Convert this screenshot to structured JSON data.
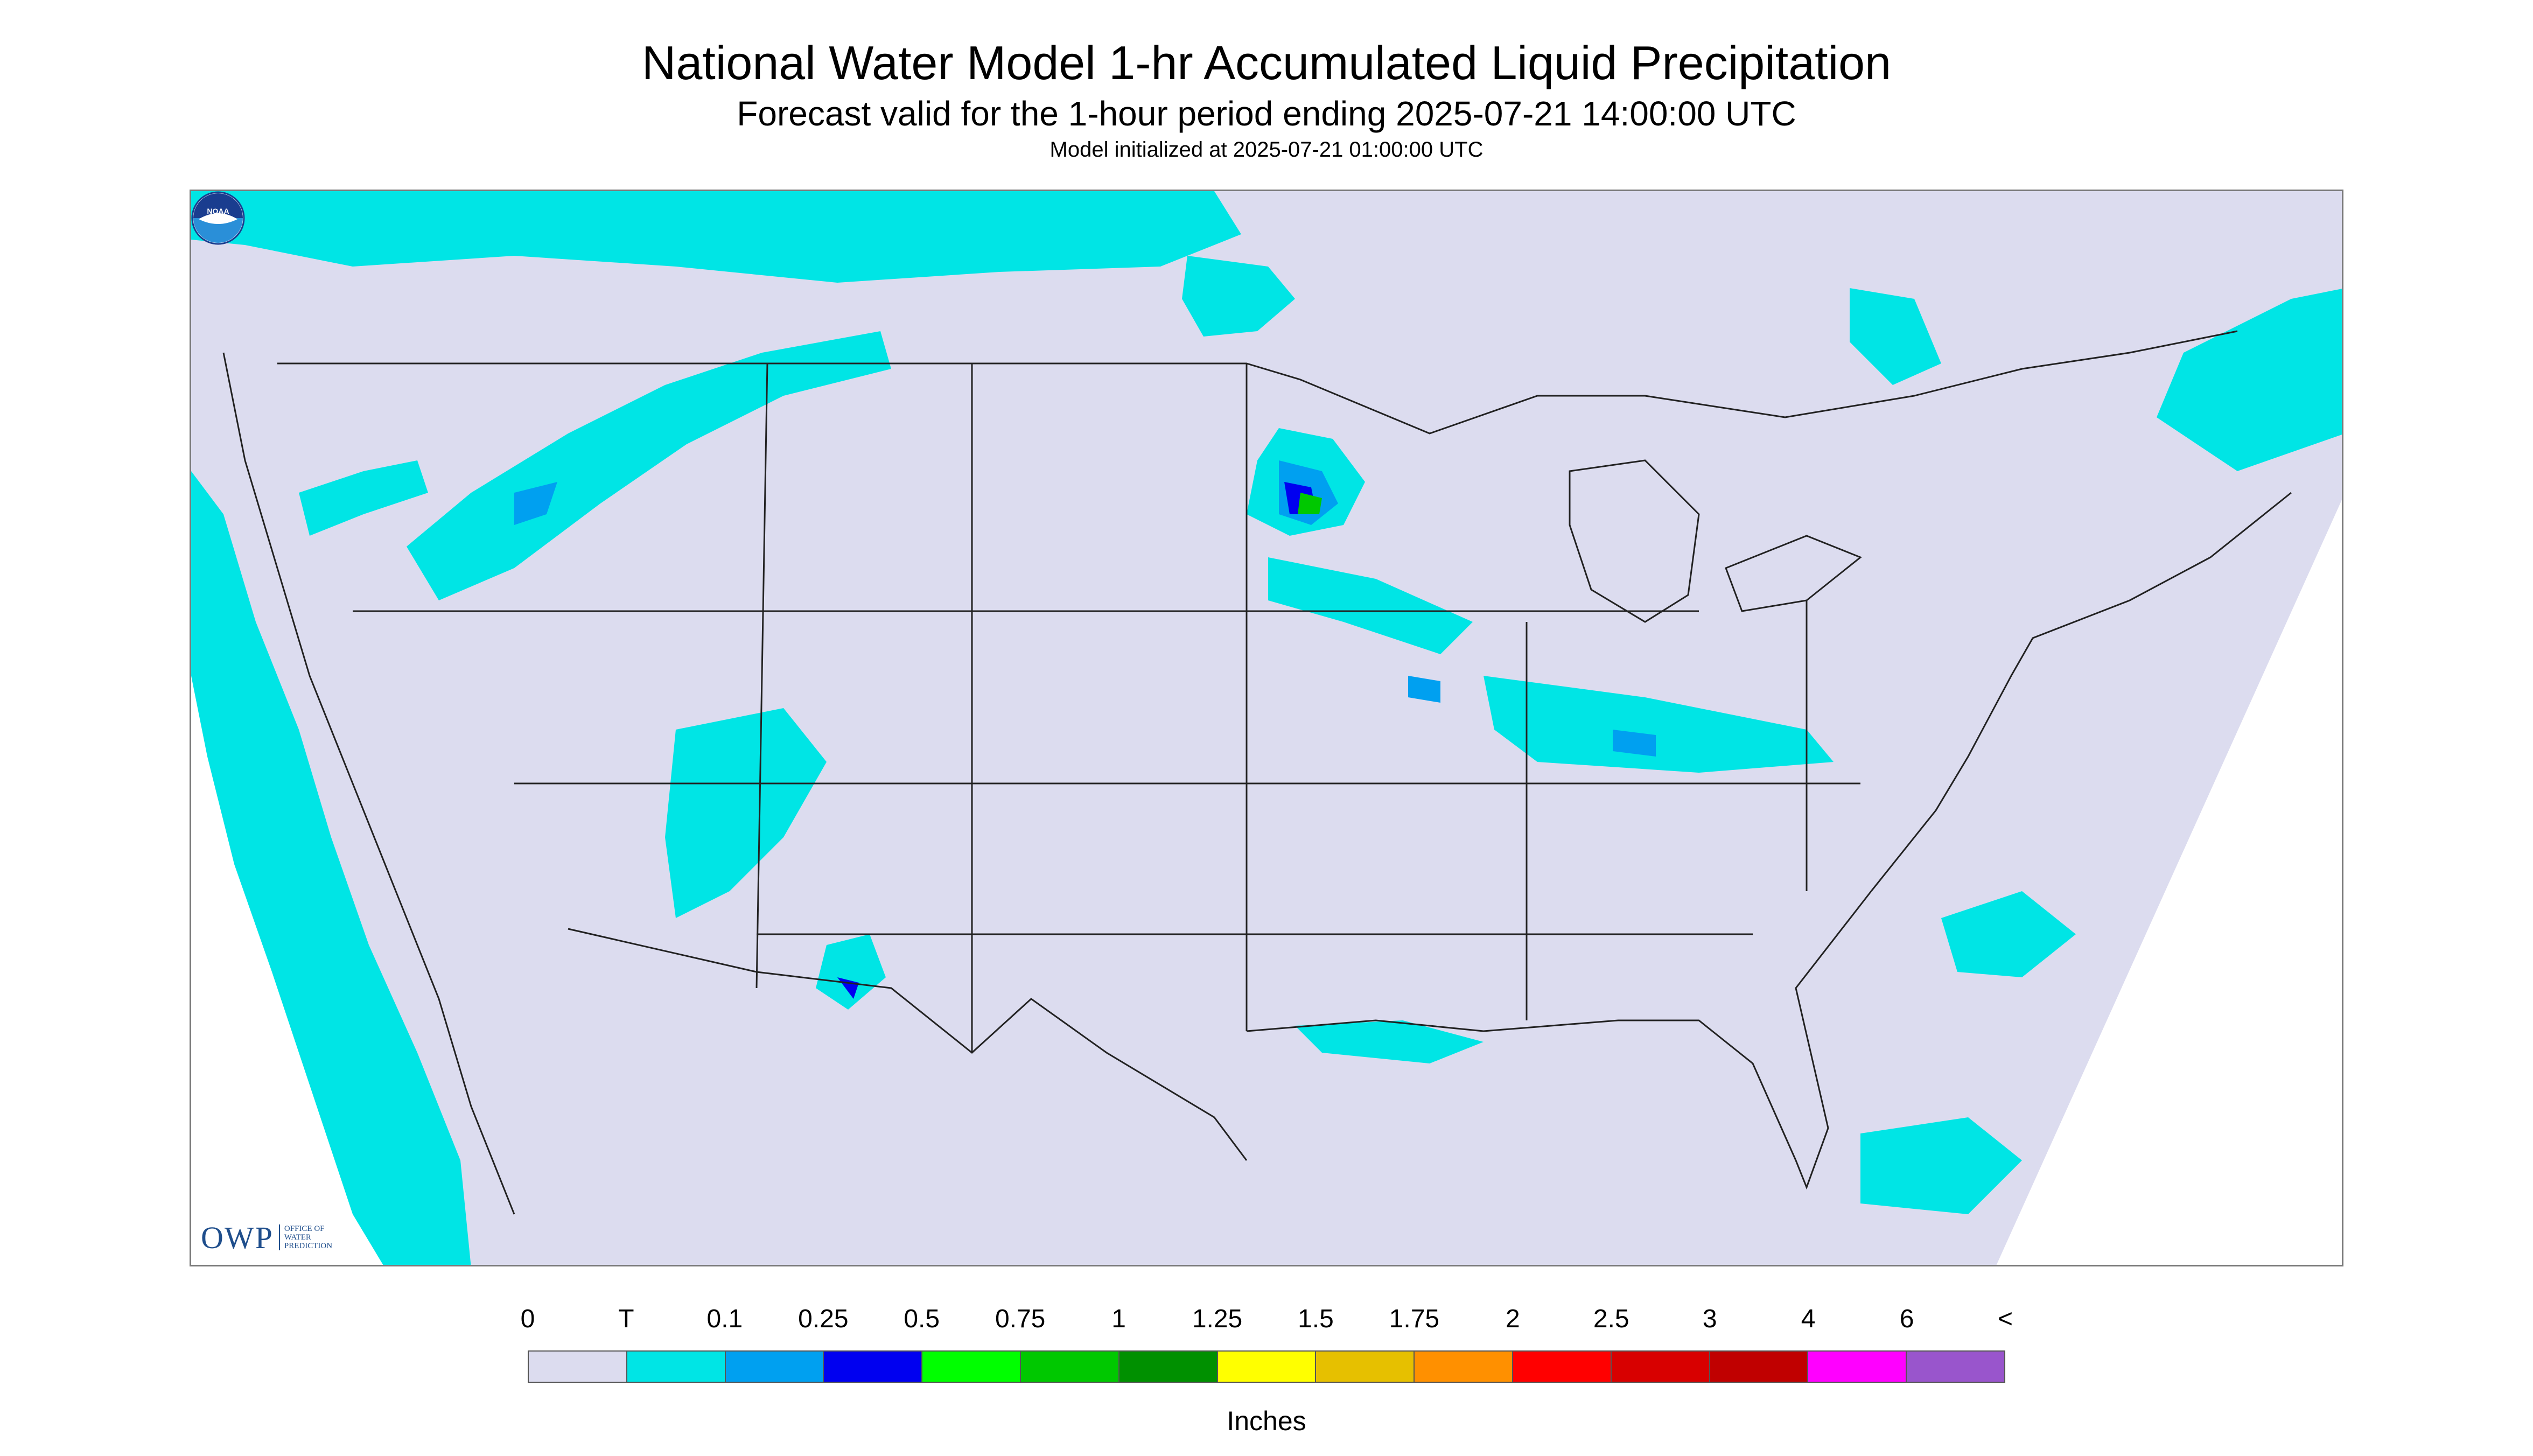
{
  "header": {
    "title": "National Water Model 1-hr Accumulated Liquid Precipitation",
    "subtitle": "Forecast valid for the 1-hour period ending 2025-07-21 14:00:00 UTC",
    "init": "Model initialized at 2025-07-21 01:00:00 UTC"
  },
  "map": {
    "background_color": "#dcdcef",
    "trace_color": "#00e5e5",
    "light_blue_color": "#00a0f0",
    "blue_color": "#0000f0",
    "green_color": "#00c800"
  },
  "logos": {
    "owp_big": "OWP",
    "owp_small_lines": [
      "OFFICE OF",
      "WATER",
      "PREDICTION"
    ],
    "noaa": "NOAA"
  },
  "legend": {
    "ticks": [
      "0",
      "T",
      "0.1",
      "0.25",
      "0.5",
      "0.75",
      "1",
      "1.25",
      "1.5",
      "1.75",
      "2",
      "2.5",
      "3",
      "4",
      "6",
      "<"
    ],
    "colors": [
      "#dcdcef",
      "#00e5e5",
      "#00a0f0",
      "#0000f0",
      "#00ff00",
      "#00c800",
      "#009000",
      "#ffff00",
      "#e6c000",
      "#ff9000",
      "#ff0000",
      "#d80000",
      "#c00000",
      "#ff00ff",
      "#9955cc"
    ],
    "units": "Inches"
  }
}
